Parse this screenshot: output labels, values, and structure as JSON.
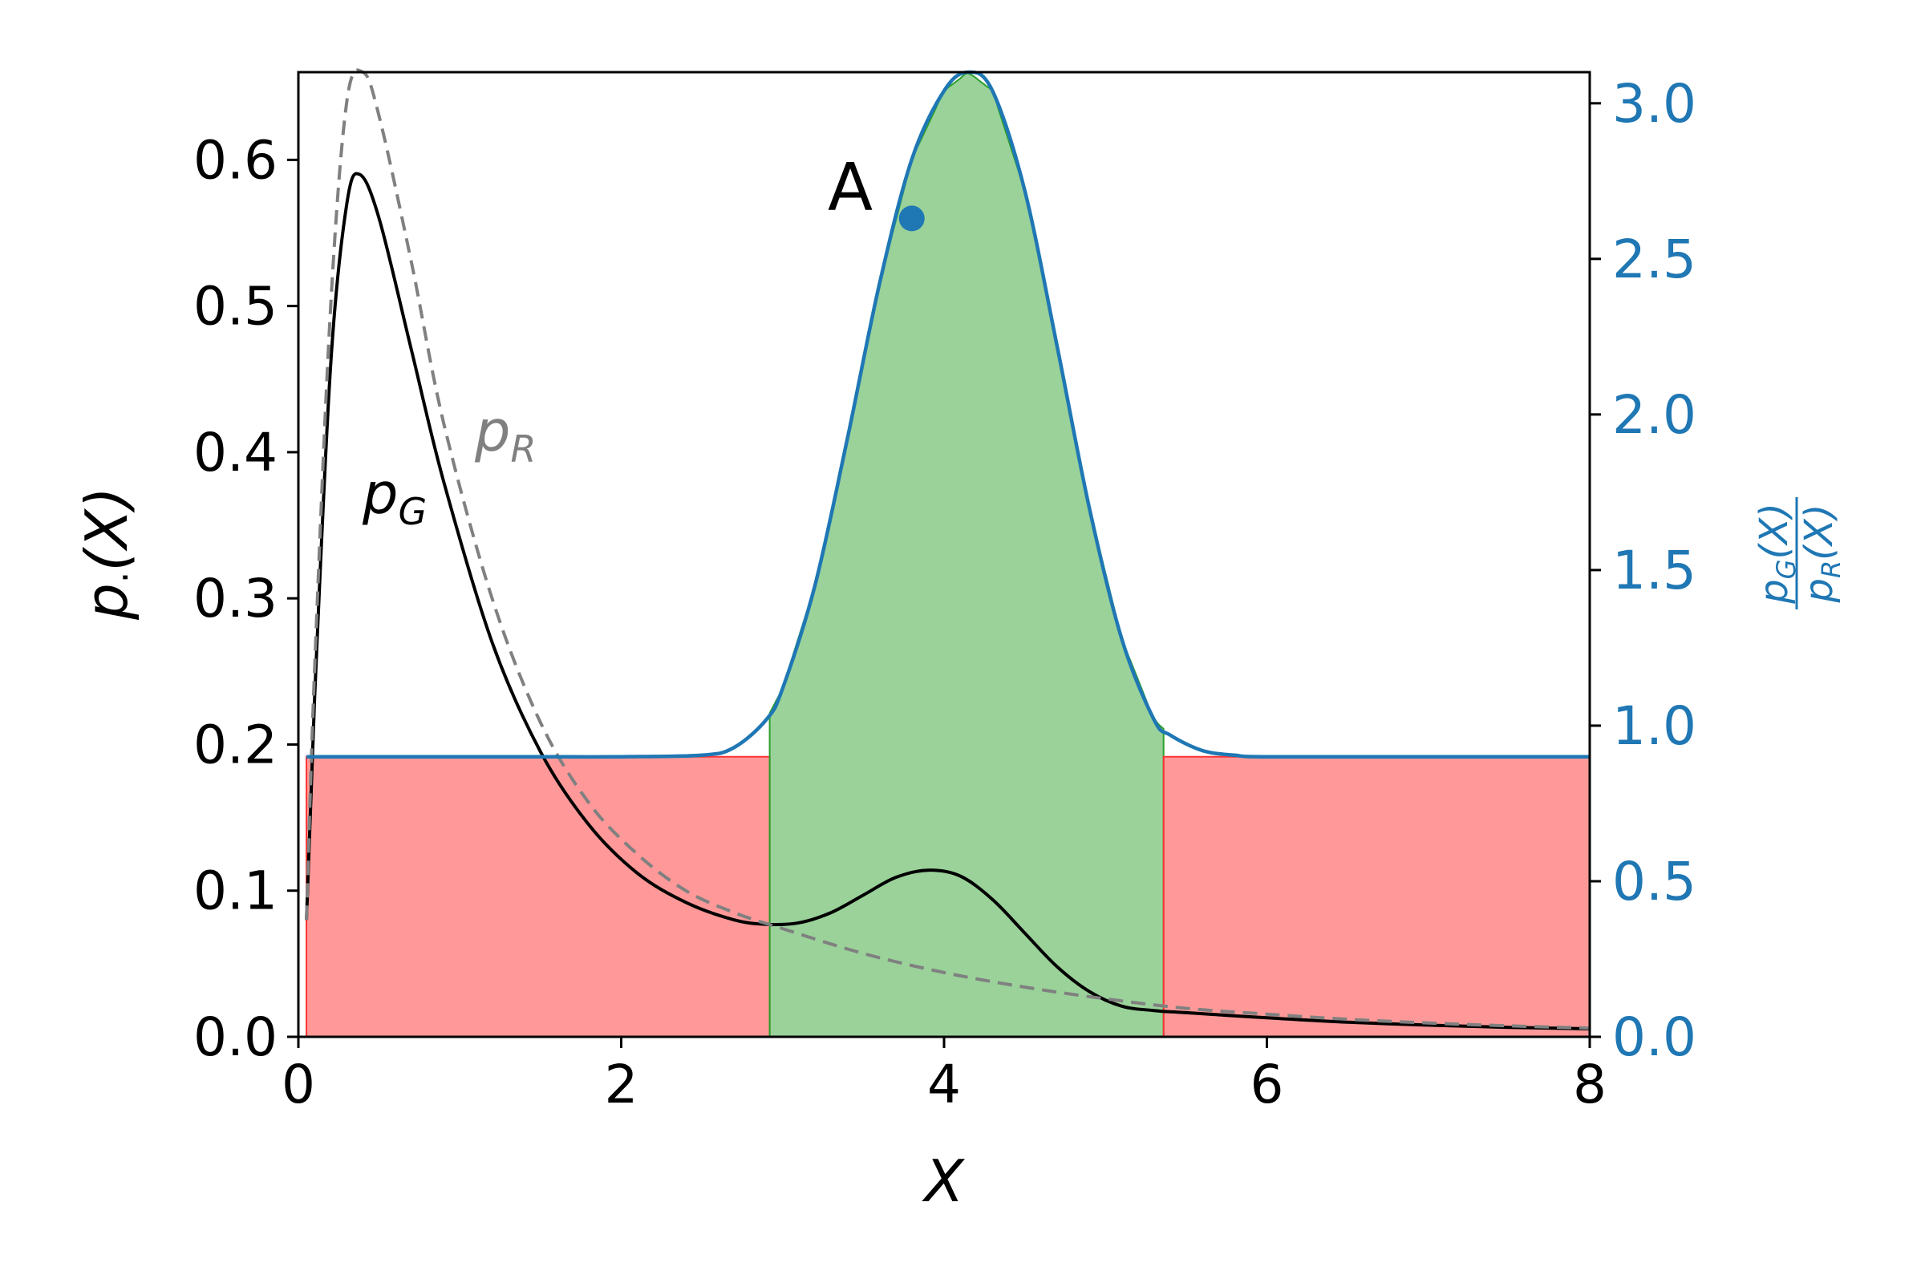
{
  "chart_data": {
    "type": "line",
    "title": "",
    "xlabel": "X",
    "ylabel": {
      "base": "p",
      "sub": "·",
      "arg": "(X)"
    },
    "y2label": {
      "num": {
        "base": "p",
        "sub": "G",
        "arg": "(X)"
      },
      "den": {
        "base": "p",
        "sub": "R",
        "arg": "(X)"
      }
    },
    "xlim": [
      0,
      8
    ],
    "ylim": [
      0,
      0.66
    ],
    "y2lim": [
      0,
      3.1
    ],
    "xticks": [
      "0",
      "2",
      "4",
      "6",
      "8"
    ],
    "yticks": [
      "0.0",
      "0.1",
      "0.2",
      "0.3",
      "0.4",
      "0.5",
      "0.6"
    ],
    "y2ticks": [
      "0.0",
      "0.5",
      "1.0",
      "1.5",
      "2.0",
      "2.5",
      "3.0"
    ],
    "grid": false,
    "colors": {
      "ratio": "#1f77b4",
      "pG": "#000000",
      "pR": "#808080",
      "green": "#2ca02c",
      "red": "#ff3333"
    },
    "series": [
      {
        "label": {
          "base": "p",
          "sub": "G"
        },
        "axis": "left",
        "style": "solid",
        "x": [
          0.05,
          0.1,
          0.2,
          0.3,
          0.38,
          0.5,
          0.7,
          0.9,
          1.2,
          1.5,
          1.8,
          2.1,
          2.4,
          2.7,
          2.9,
          3.1,
          3.3,
          3.5,
          3.7,
          3.9,
          4.1,
          4.3,
          4.5,
          4.7,
          4.9,
          5.1,
          5.3,
          5.5,
          6.0,
          6.5,
          7.0,
          7.5,
          8.0
        ],
        "y": [
          0.08,
          0.23,
          0.46,
          0.57,
          0.59,
          0.56,
          0.47,
          0.38,
          0.27,
          0.195,
          0.145,
          0.112,
          0.092,
          0.08,
          0.077,
          0.078,
          0.085,
          0.097,
          0.109,
          0.114,
          0.11,
          0.094,
          0.071,
          0.048,
          0.031,
          0.021,
          0.018,
          0.0165,
          0.013,
          0.01,
          0.008,
          0.0065,
          0.0055
        ]
      },
      {
        "label": {
          "base": "p",
          "sub": "R"
        },
        "axis": "left",
        "style": "dashed",
        "x": [
          0.05,
          0.1,
          0.2,
          0.3,
          0.4,
          0.5,
          0.7,
          0.9,
          1.2,
          1.5,
          1.8,
          2.1,
          2.4,
          2.7,
          3.0,
          3.5,
          4.0,
          4.5,
          5.0,
          5.5,
          6.0,
          6.5,
          7.0,
          7.5,
          8.0
        ],
        "y": [
          0.08,
          0.25,
          0.5,
          0.64,
          0.66,
          0.63,
          0.53,
          0.42,
          0.3,
          0.215,
          0.16,
          0.125,
          0.1,
          0.085,
          0.074,
          0.057,
          0.044,
          0.034,
          0.026,
          0.0195,
          0.0155,
          0.012,
          0.0095,
          0.0075,
          0.006
        ]
      },
      {
        "label": {
          "num": {
            "base": "p",
            "sub": "G",
            "arg": "(X)"
          },
          "den": {
            "base": "p",
            "sub": "R",
            "arg": "(X)"
          }
        },
        "axis": "right",
        "style": "solid",
        "x": [
          0.05,
          0.5,
          1.0,
          1.5,
          2.0,
          2.5,
          2.7,
          2.9,
          3.0,
          3.2,
          3.4,
          3.6,
          3.8,
          4.0,
          4.15,
          4.3,
          4.5,
          4.7,
          4.9,
          5.1,
          5.3,
          5.4,
          5.6,
          5.8,
          6.0,
          7.0,
          8.0
        ],
        "y": [
          0.9,
          0.9,
          0.9,
          0.9,
          0.9,
          0.905,
          0.93,
          1.02,
          1.12,
          1.45,
          1.92,
          2.42,
          2.82,
          3.04,
          3.1,
          3.04,
          2.72,
          2.22,
          1.7,
          1.28,
          1.02,
          0.97,
          0.92,
          0.905,
          0.9,
          0.9,
          0.9
        ]
      }
    ],
    "regions": [
      {
        "x0": 0.05,
        "x1": 2.92,
        "top": 0.9,
        "color": "red"
      },
      {
        "x0": 2.92,
        "x1": 5.36,
        "top": "ratio",
        "color": "green"
      },
      {
        "x0": 5.36,
        "x1": 8.0,
        "top": 0.9,
        "color": "red"
      }
    ],
    "annotations": [
      {
        "text": "A",
        "point": {
          "x": 3.8,
          "y2": 2.63
        }
      }
    ]
  }
}
